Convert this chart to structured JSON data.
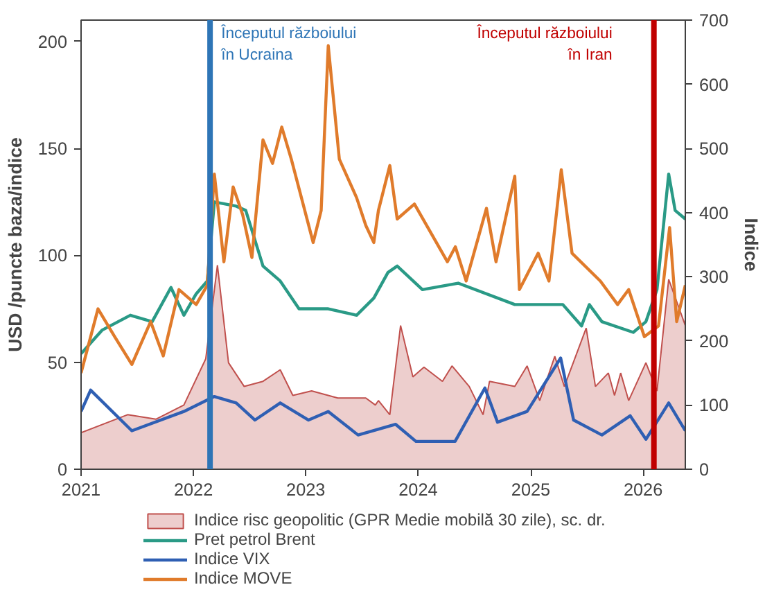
{
  "chart_data": {
    "type": "line",
    "xlabel": null,
    "ylabel": "USD /puncte baza/indice",
    "y2label": "Indice",
    "xlim": [
      "2021-01-01",
      "2026-05-18"
    ],
    "xticks": [
      {
        "value": "2021-01-01",
        "label": "2021"
      },
      {
        "value": "2022-01-01",
        "label": "2022"
      },
      {
        "value": "2023-01-01",
        "label": "2023"
      },
      {
        "value": "2024-01-01",
        "label": "2024"
      },
      {
        "value": "2025-01-01",
        "label": "2025"
      },
      {
        "value": "2026-01-01",
        "label": "2026"
      }
    ],
    "ylim": [
      0,
      210
    ],
    "yticks": [
      0,
      50,
      100,
      150,
      200
    ],
    "y2lim": [
      0,
      700
    ],
    "y2ticks": [
      0,
      100,
      200,
      300,
      400,
      500,
      600,
      700
    ],
    "grid": false,
    "legend": "bottom",
    "series": [
      {
        "name": "Indice risc geopolitic (GPR Medie mobilă 30 zile), sc. dr.",
        "type": "area",
        "axis": "y2",
        "color": "#c0504d",
        "x": [
          "2021-01-01",
          "2021-06-01",
          "2021-09-01",
          "2021-12-01",
          "2022-02-10",
          "2022-03-20",
          "2022-04-25",
          "2022-06-15",
          "2022-08-15",
          "2022-10-10",
          "2022-11-20",
          "2023-01-20",
          "2023-04-15",
          "2023-07-15",
          "2023-08-15",
          "2023-08-25",
          "2023-10-01",
          "2023-11-05",
          "2023-12-15",
          "2024-01-20",
          "2024-03-20",
          "2024-04-20",
          "2024-06-15",
          "2024-07-30",
          "2024-08-20",
          "2024-11-10",
          "2024-12-20",
          "2025-01-30",
          "2025-03-20",
          "2025-04-20",
          "2025-06-30",
          "2025-07-30",
          "2025-09-10",
          "2025-09-30",
          "2025-10-20",
          "2025-11-15",
          "2026-01-10",
          "2026-02-15",
          "2026-03-25",
          "2026-05-18"
        ],
        "values": [
          57,
          85,
          78,
          100,
          172,
          318,
          166,
          129,
          137,
          155,
          115,
          122,
          111,
          111,
          100,
          107,
          85,
          224,
          144,
          159,
          137,
          161,
          129,
          85,
          137,
          129,
          161,
          107,
          176,
          129,
          220,
          129,
          150,
          115,
          150,
          107,
          166,
          122,
          296,
          224
        ]
      },
      {
        "name": "Pret petrol Brent",
        "color": "#2a9a86",
        "x": [
          "2021-01-01",
          "2021-03-10",
          "2021-06-10",
          "2021-08-20",
          "2021-10-20",
          "2021-12-01",
          "2022-01-10",
          "2022-02-15",
          "2022-03-10",
          "2022-05-20",
          "2022-06-20",
          "2022-08-15",
          "2022-10-10",
          "2022-12-10",
          "2023-03-15",
          "2023-06-15",
          "2023-08-10",
          "2023-09-25",
          "2023-10-25",
          "2024-01-15",
          "2024-05-10",
          "2024-11-10",
          "2025-04-15",
          "2025-06-15",
          "2025-07-10",
          "2025-08-20",
          "2025-11-30",
          "2026-01-10",
          "2026-02-15",
          "2026-03-25",
          "2026-04-15",
          "2026-05-18"
        ],
        "values": [
          54,
          65,
          72,
          69,
          85,
          72,
          82,
          88,
          125,
          123,
          121,
          95,
          88,
          75,
          75,
          72,
          80,
          92,
          95,
          84,
          87,
          77,
          77,
          67,
          77,
          69,
          64,
          69,
          84,
          138,
          121,
          117
        ]
      },
      {
        "name": "Indice VIX",
        "color": "#2f5fb3",
        "x": [
          "2021-01-01",
          "2021-02-01",
          "2021-06-15",
          "2021-12-01",
          "2022-03-10",
          "2022-05-20",
          "2022-07-20",
          "2022-10-10",
          "2023-01-10",
          "2023-03-15",
          "2023-06-20",
          "2023-10-20",
          "2023-12-25",
          "2024-04-30",
          "2024-08-05",
          "2024-09-15",
          "2024-12-20",
          "2025-04-08",
          "2025-05-20",
          "2025-08-20",
          "2025-11-20",
          "2026-01-10",
          "2026-03-25",
          "2026-05-18"
        ],
        "values": [
          27,
          37,
          18,
          27,
          34,
          31,
          23,
          31,
          23,
          27,
          16,
          21,
          13,
          13,
          38,
          22,
          27,
          52,
          23,
          16,
          25,
          14,
          31,
          18
        ]
      },
      {
        "name": "Indice MOVE",
        "color": "#e07b2b",
        "x": [
          "2021-01-01",
          "2021-02-25",
          "2021-04-20",
          "2021-06-15",
          "2021-08-15",
          "2021-09-25",
          "2021-11-15",
          "2022-01-10",
          "2022-02-15",
          "2022-03-10",
          "2022-04-10",
          "2022-05-10",
          "2022-06-10",
          "2022-07-10",
          "2022-08-15",
          "2022-09-15",
          "2022-10-15",
          "2022-11-15",
          "2023-01-25",
          "2023-02-20",
          "2023-03-15",
          "2023-04-20",
          "2023-06-15",
          "2023-07-15",
          "2023-08-10",
          "2023-08-25",
          "2023-10-01",
          "2023-10-25",
          "2023-12-20",
          "2024-04-05",
          "2024-05-01",
          "2024-06-05",
          "2024-08-10",
          "2024-09-10",
          "2024-11-10",
          "2024-11-25",
          "2025-01-25",
          "2025-03-01",
          "2025-04-10",
          "2025-05-15",
          "2025-08-15",
          "2025-10-10",
          "2025-11-15",
          "2026-01-05",
          "2026-02-20",
          "2026-03-28",
          "2026-04-20",
          "2026-05-18"
        ],
        "values": [
          45,
          75,
          62,
          49,
          69,
          53,
          84,
          77,
          86,
          138,
          97,
          132,
          119,
          99,
          154,
          143,
          160,
          145,
          106,
          121,
          198,
          145,
          127,
          114,
          106,
          121,
          142,
          117,
          124,
          97,
          104,
          88,
          122,
          97,
          137,
          84,
          101,
          88,
          140,
          101,
          88,
          77,
          84,
          62,
          67,
          113,
          69,
          86
        ]
      }
    ],
    "ref_lines": [
      {
        "axis": "x",
        "value": "2022-02-24",
        "label": "Începutul războiului\nîn Ucraina",
        "color": "#2e75b6"
      },
      {
        "axis": "x",
        "value": "2026-02-05",
        "label": "Începutul războiului\nîn Iran",
        "color": "#c00000"
      }
    ]
  }
}
